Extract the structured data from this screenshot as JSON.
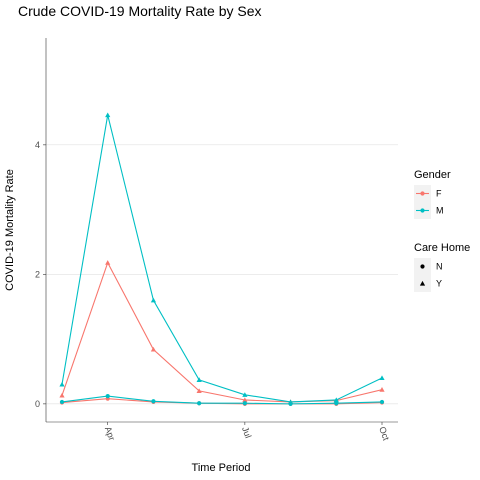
{
  "chart_data": {
    "type": "line",
    "title": "Crude COVID-19 Mortality Rate by Sex",
    "xlabel": "Time Period",
    "ylabel": "COVID-19 Mortality Rate",
    "x_ticks": [
      "Apr",
      "Jul",
      "Oct"
    ],
    "x_tick_positions": [
      2,
      5,
      8
    ],
    "x": [
      1,
      2,
      3,
      4,
      5,
      6,
      7,
      8
    ],
    "y_ticks": [
      0,
      2,
      4
    ],
    "ylim": [
      -0.28,
      5.65
    ],
    "xlim": [
      0.65,
      8.35
    ],
    "grid": true,
    "legend_position": "right",
    "legend": {
      "gender": {
        "title": "Gender",
        "items": [
          {
            "label": "F",
            "color": "#F8766D"
          },
          {
            "label": "M",
            "color": "#00BFC4"
          }
        ]
      },
      "care_home": {
        "title": "Care Home",
        "items": [
          {
            "label": "N",
            "shape": "circle"
          },
          {
            "label": "Y",
            "shape": "triangle"
          }
        ]
      }
    },
    "series": [
      {
        "gender": "F",
        "care_home": "Y",
        "color": "#F8766D",
        "shape": "triangle",
        "values": [
          0.13,
          2.18,
          0.84,
          0.2,
          0.06,
          0.03,
          0.05,
          0.22
        ]
      },
      {
        "gender": "M",
        "care_home": "Y",
        "color": "#00BFC4",
        "shape": "triangle",
        "values": [
          0.3,
          4.46,
          1.6,
          0.37,
          0.14,
          0.03,
          0.06,
          0.4
        ]
      },
      {
        "gender": "F",
        "care_home": "N",
        "color": "#F8766D",
        "shape": "circle",
        "values": [
          0.02,
          0.08,
          0.03,
          0.01,
          0.0,
          0.0,
          0.0,
          0.02
        ]
      },
      {
        "gender": "M",
        "care_home": "N",
        "color": "#00BFC4",
        "shape": "circle",
        "values": [
          0.03,
          0.12,
          0.04,
          0.01,
          0.01,
          0.0,
          0.01,
          0.03
        ]
      }
    ]
  }
}
